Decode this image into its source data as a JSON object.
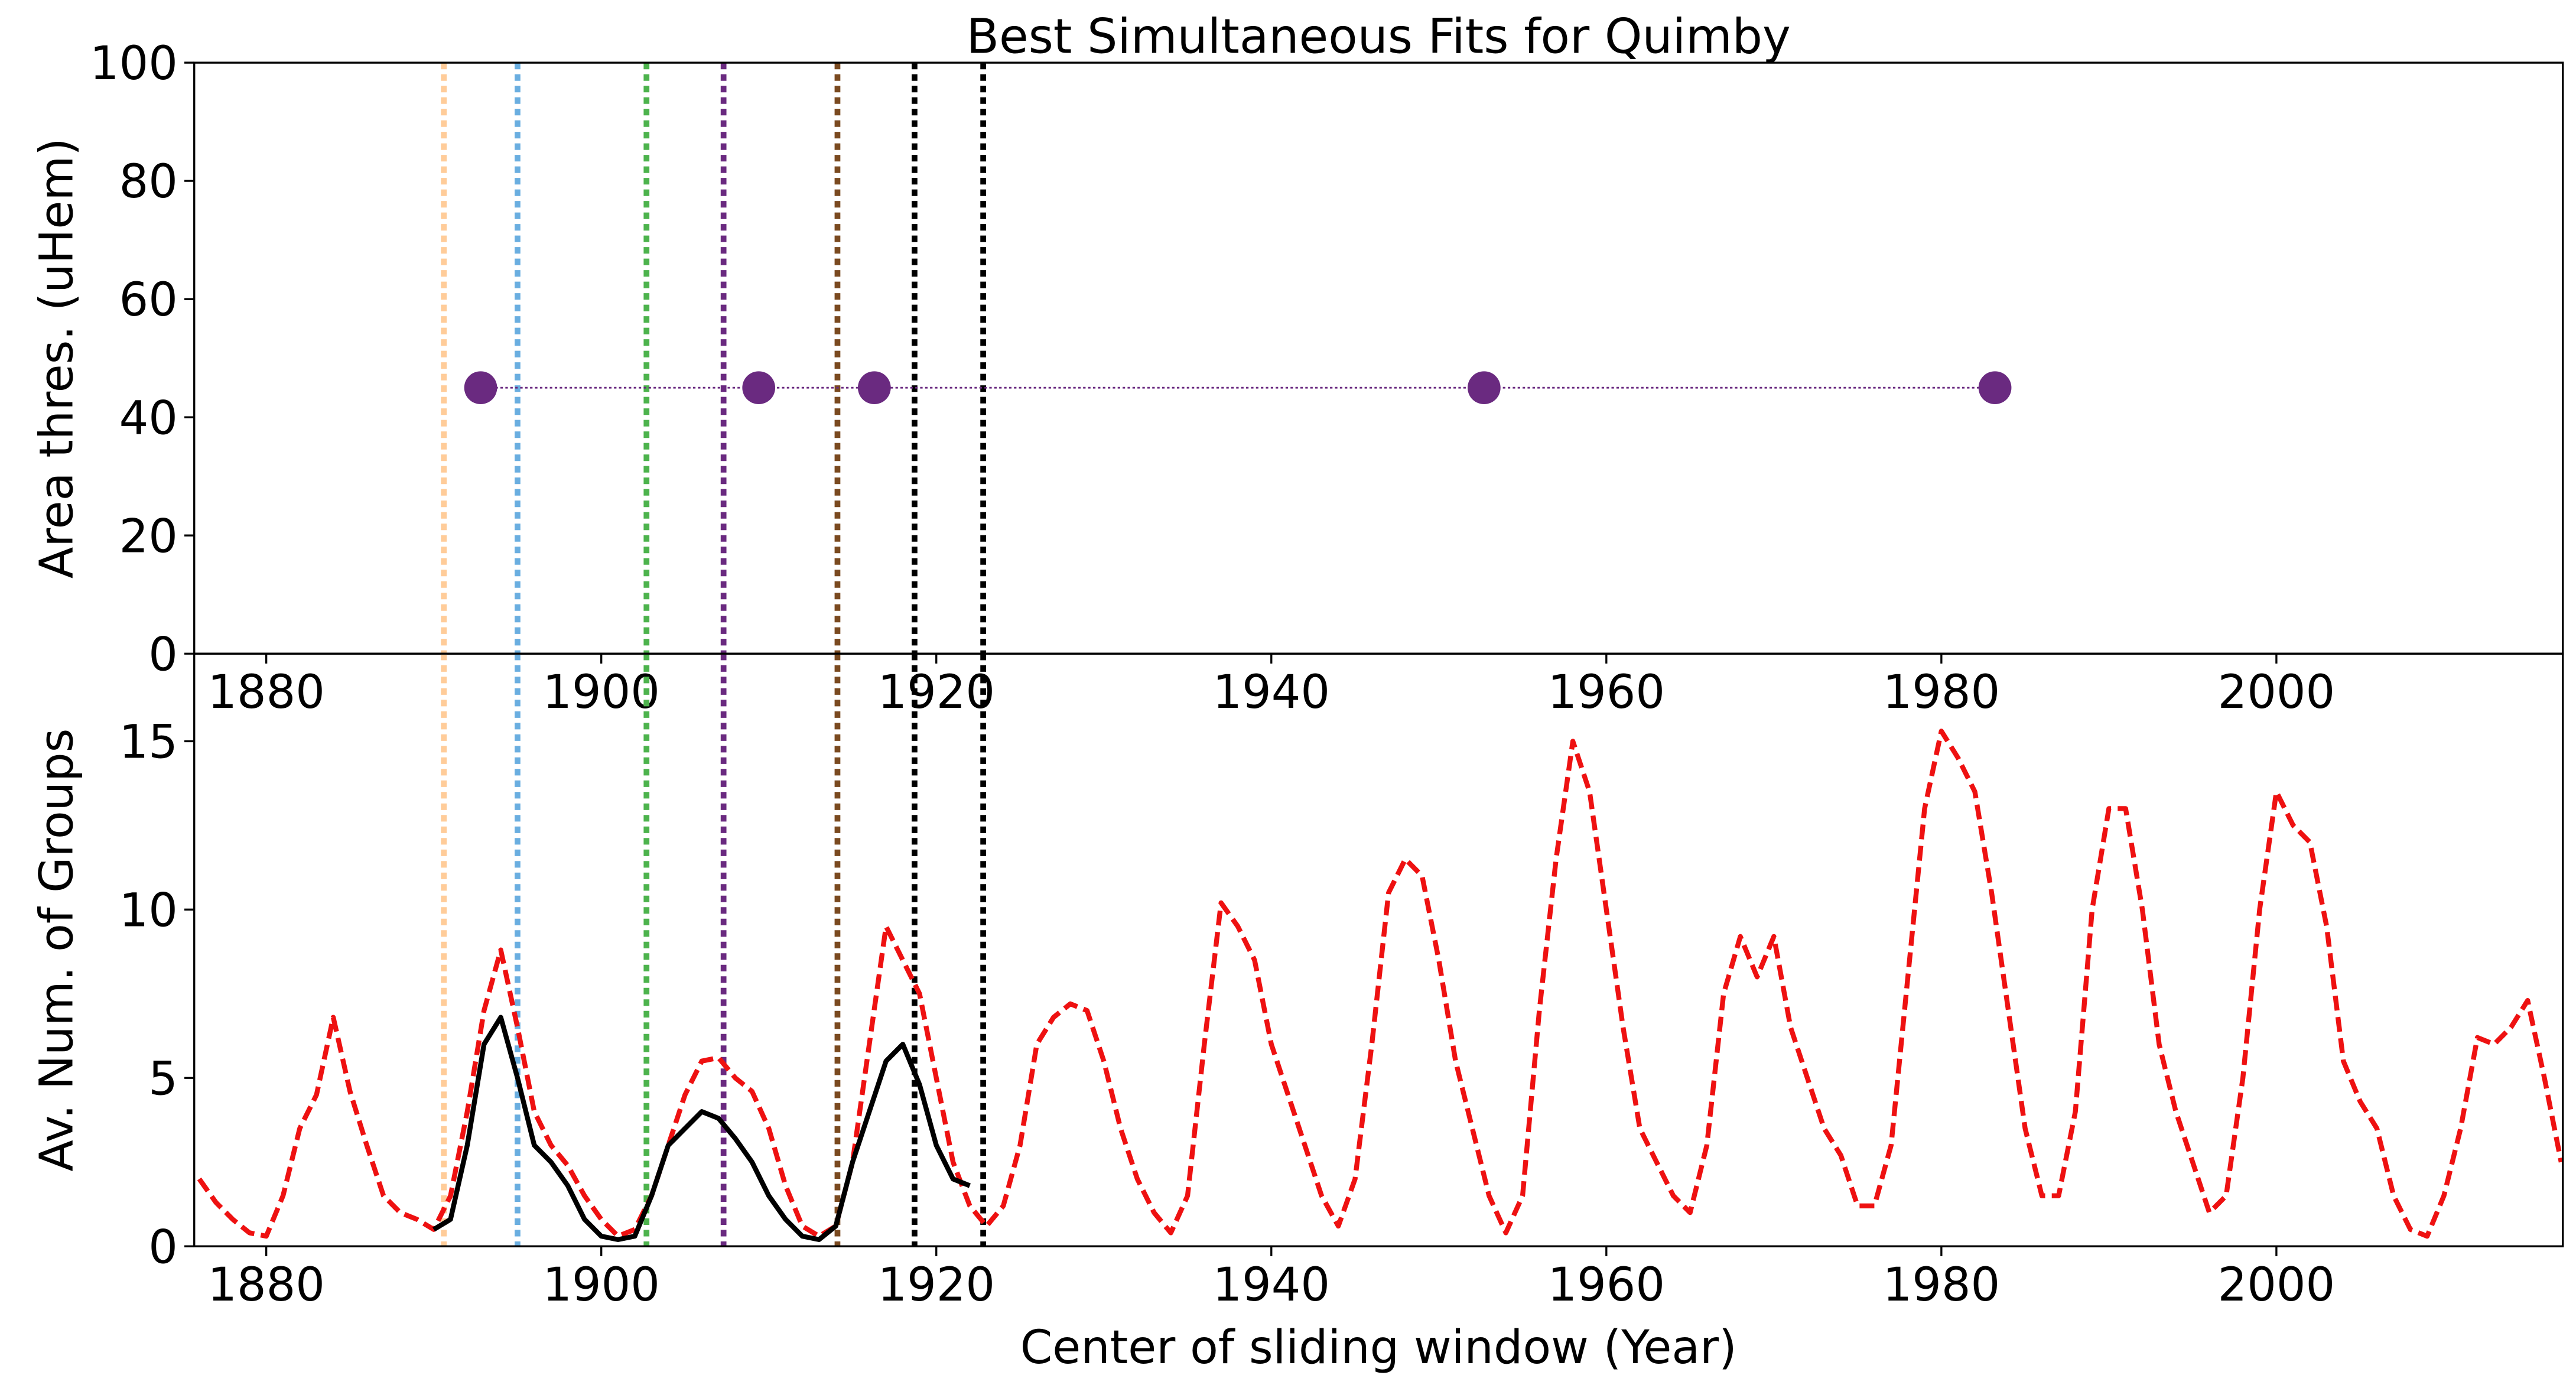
{
  "chart_data": [
    {
      "type": "scatter",
      "title": "Best Simultaneous Fits for Quimby",
      "ylabel": "Area thres. (uHem)",
      "xlim": [
        1875.7,
        2017.1
      ],
      "xticks": [
        1880,
        1900,
        1920,
        1940,
        1960,
        1980,
        2000
      ],
      "ylim": [
        0,
        100
      ],
      "yticks": [
        0,
        20,
        40,
        60,
        80,
        100
      ],
      "color": "#6a2a80",
      "x": [
        1892.8,
        1909.4,
        1916.3,
        1952.7,
        1983.2
      ],
      "values": [
        45,
        45,
        45,
        45,
        45
      ],
      "vlines": [
        {
          "x": 1890.6,
          "color": "#ffcc99"
        },
        {
          "x": 1895.0,
          "color": "#6aaee0"
        },
        {
          "x": 1902.7,
          "color": "#4db34d"
        },
        {
          "x": 1907.3,
          "color": "#6a2a80"
        },
        {
          "x": 1914.1,
          "color": "#7a4a20"
        },
        {
          "x": 1918.7,
          "color": "#000000"
        },
        {
          "x": 1922.8,
          "color": "#000000"
        }
      ]
    },
    {
      "type": "line",
      "ylabel": "Av. Num. of Groups",
      "xlabel": "Center of sliding window (Year)",
      "xlim": [
        1875.7,
        2017.1
      ],
      "xticks": [
        1880,
        1900,
        1920,
        1940,
        1960,
        1980,
        2000
      ],
      "ylim": [
        0,
        17.6
      ],
      "yticks": [
        0,
        5,
        10,
        15
      ],
      "series": [
        {
          "color": "#ee1111",
          "dash": true,
          "x": [
            1876,
            1877,
            1878,
            1879,
            1880,
            1881,
            1882,
            1883,
            1884,
            1885,
            1886,
            1887,
            1888,
            1889,
            1890,
            1891,
            1892,
            1893,
            1894,
            1895,
            1896,
            1897,
            1898,
            1899,
            1900,
            1901,
            1902,
            1903,
            1904,
            1905,
            1906,
            1907,
            1908,
            1909,
            1910,
            1911,
            1912,
            1913,
            1914,
            1915,
            1916,
            1917,
            1918,
            1919,
            1920,
            1921,
            1922,
            1923,
            1924,
            1925,
            1926,
            1927,
            1928,
            1929,
            1930,
            1931,
            1932,
            1933,
            1934,
            1935,
            1936,
            1937,
            1938,
            1939,
            1940,
            1941,
            1942,
            1943,
            1944,
            1945,
            1946,
            1947,
            1948,
            1949,
            1950,
            1951,
            1952,
            1953,
            1954,
            1955,
            1956,
            1957,
            1958,
            1959,
            1960,
            1961,
            1962,
            1963,
            1964,
            1965,
            1966,
            1967,
            1968,
            1969,
            1970,
            1971,
            1972,
            1973,
            1974,
            1975,
            1976,
            1977,
            1978,
            1979,
            1980,
            1981,
            1982,
            1983,
            1984,
            1985,
            1986,
            1987,
            1988,
            1989,
            1990,
            1991,
            1992,
            1993,
            1994,
            1995,
            1996,
            1997,
            1998,
            1999,
            2000,
            2001,
            2002,
            2003,
            2004,
            2005,
            2006,
            2007,
            2008,
            2009,
            2010,
            2011,
            2012,
            2013,
            2014,
            2015,
            2016,
            2017
          ],
          "values": [
            2.0,
            1.3,
            0.8,
            0.4,
            0.3,
            1.5,
            3.5,
            4.5,
            6.8,
            4.6,
            3,
            1.5,
            1.0,
            0.8,
            0.5,
            1.5,
            4,
            7,
            8.8,
            6.5,
            4,
            3,
            2.4,
            1.5,
            0.8,
            0.3,
            0.5,
            1.5,
            3,
            4.5,
            5.5,
            5.6,
            5.0,
            4.6,
            3.5,
            1.8,
            0.6,
            0.3,
            0.6,
            2.5,
            6,
            9.5,
            8.5,
            7.5,
            5,
            2.5,
            1.2,
            0.6,
            1.2,
            3,
            6,
            6.8,
            7.2,
            7.0,
            5.5,
            3.5,
            2.0,
            1.0,
            0.4,
            1.5,
            6,
            10.2,
            9.5,
            8.5,
            6,
            4.5,
            3,
            1.5,
            0.6,
            2,
            6,
            10.5,
            11.5,
            11,
            8.5,
            5.5,
            3.5,
            1.5,
            0.4,
            1.5,
            7,
            11.5,
            15,
            13.5,
            10,
            6.5,
            3.5,
            2.5,
            1.5,
            1.0,
            3,
            7.5,
            9.2,
            8,
            9.2,
            6.5,
            5,
            3.5,
            2.7,
            1.2,
            1.2,
            3,
            8,
            13,
            15.3,
            14.5,
            13.5,
            10.5,
            7,
            3.5,
            1.5,
            1.5,
            4,
            10,
            13,
            13,
            10,
            6,
            4,
            2.5,
            1.0,
            1.5,
            5,
            10,
            13.5,
            12.5,
            12,
            9.5,
            5.5,
            4.3,
            3.5,
            1.5,
            0.5,
            0.3,
            1.5,
            3.5,
            6.2,
            6,
            6.5,
            7.3,
            5,
            2.5
          ]
        },
        {
          "color": "#000000",
          "dash": false,
          "x": [
            1890,
            1891,
            1892,
            1893,
            1894,
            1895,
            1896,
            1897,
            1898,
            1899,
            1900,
            1901,
            1902,
            1903,
            1904,
            1905,
            1906,
            1907,
            1908,
            1909,
            1910,
            1911,
            1912,
            1913,
            1914,
            1915,
            1916,
            1917,
            1918,
            1919,
            1920,
            1921,
            1922
          ],
          "values": [
            0.5,
            0.8,
            3,
            6,
            6.8,
            5,
            3,
            2.5,
            1.8,
            0.8,
            0.3,
            0.2,
            0.3,
            1.5,
            3,
            3.5,
            4,
            3.8,
            3.2,
            2.5,
            1.5,
            0.8,
            0.3,
            0.2,
            0.6,
            2.5,
            4,
            5.5,
            6,
            4.8,
            3,
            2,
            1.8
          ]
        }
      ]
    }
  ]
}
